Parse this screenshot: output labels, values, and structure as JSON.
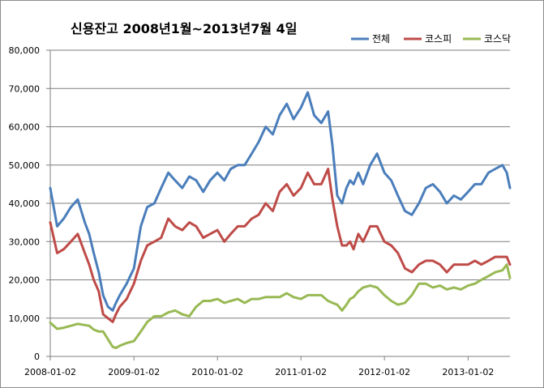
{
  "chart_data": {
    "type": "line",
    "title": "신용잔고 2008년1월~2013년7월 4일",
    "xlabel": "",
    "ylabel": "",
    "ylim": [
      0,
      80000
    ],
    "y_ticks": [
      0,
      10000,
      20000,
      30000,
      40000,
      50000,
      60000,
      70000,
      80000
    ],
    "y_tick_labels": [
      "0",
      "10,000",
      "20,000",
      "30,000",
      "40,000",
      "50,000",
      "60,000",
      "70,000",
      "80,000"
    ],
    "xlim": [
      "2008-01-02",
      "2013-07-04"
    ],
    "x_ticks": [
      "2008-01-02",
      "2009-01-02",
      "2010-01-02",
      "2011-01-02",
      "2012-01-02",
      "2013-01-02"
    ],
    "grid": "horizontal",
    "legend_position": "top-right",
    "series": [
      {
        "name": "전체",
        "color": "#4a7ebb",
        "x": [
          "2008-01-02",
          "2008-02-01",
          "2008-03-01",
          "2008-04-01",
          "2008-05-01",
          "2008-06-01",
          "2008-06-20",
          "2008-07-10",
          "2008-08-01",
          "2008-08-20",
          "2008-09-10",
          "2008-10-01",
          "2008-10-15",
          "2008-11-01",
          "2008-12-01",
          "2009-01-02",
          "2009-02-01",
          "2009-03-01",
          "2009-04-01",
          "2009-05-01",
          "2009-06-01",
          "2009-07-01",
          "2009-08-01",
          "2009-09-01",
          "2009-10-01",
          "2009-11-01",
          "2009-12-01",
          "2010-01-02",
          "2010-02-01",
          "2010-03-01",
          "2010-04-01",
          "2010-05-01",
          "2010-06-01",
          "2010-07-01",
          "2010-08-01",
          "2010-09-01",
          "2010-10-01",
          "2010-11-01",
          "2010-12-01",
          "2011-01-02",
          "2011-02-01",
          "2011-03-01",
          "2011-04-01",
          "2011-05-01",
          "2011-05-20",
          "2011-06-10",
          "2011-07-01",
          "2011-07-20",
          "2011-08-05",
          "2011-08-20",
          "2011-09-10",
          "2011-10-01",
          "2011-11-01",
          "2011-12-01",
          "2012-01-02",
          "2012-02-01",
          "2012-03-01",
          "2012-04-01",
          "2012-05-01",
          "2012-06-01",
          "2012-07-01",
          "2012-08-01",
          "2012-09-01",
          "2012-10-01",
          "2012-11-01",
          "2012-12-01",
          "2013-01-02",
          "2013-02-01",
          "2013-03-01",
          "2013-04-01",
          "2013-05-01",
          "2013-06-01",
          "2013-06-20",
          "2013-07-04"
        ],
        "values": [
          44000,
          34000,
          36000,
          39000,
          41000,
          35000,
          32000,
          27000,
          22000,
          16000,
          13000,
          12000,
          14000,
          16000,
          19000,
          23000,
          34000,
          39000,
          40000,
          44000,
          48000,
          46000,
          44000,
          47000,
          46000,
          43000,
          46000,
          48000,
          46000,
          49000,
          50000,
          50000,
          53000,
          56000,
          60000,
          58000,
          63000,
          66000,
          62000,
          65000,
          69000,
          63000,
          61000,
          64000,
          55000,
          42000,
          40000,
          44000,
          46000,
          45000,
          48000,
          45000,
          50000,
          53000,
          48000,
          46000,
          42000,
          38000,
          37000,
          40000,
          44000,
          45000,
          43000,
          40000,
          42000,
          41000,
          43000,
          45000,
          45000,
          48000,
          49000,
          50000,
          48000,
          44000
        ]
      },
      {
        "name": "코스피",
        "color": "#be4b48",
        "x": [
          "2008-01-02",
          "2008-02-01",
          "2008-03-01",
          "2008-04-01",
          "2008-05-01",
          "2008-06-01",
          "2008-06-20",
          "2008-07-10",
          "2008-08-01",
          "2008-08-20",
          "2008-09-10",
          "2008-10-01",
          "2008-10-15",
          "2008-11-01",
          "2008-12-01",
          "2009-01-02",
          "2009-02-01",
          "2009-03-01",
          "2009-04-01",
          "2009-05-01",
          "2009-06-01",
          "2009-07-01",
          "2009-08-01",
          "2009-09-01",
          "2009-10-01",
          "2009-11-01",
          "2009-12-01",
          "2010-01-02",
          "2010-02-01",
          "2010-03-01",
          "2010-04-01",
          "2010-05-01",
          "2010-06-01",
          "2010-07-01",
          "2010-08-01",
          "2010-09-01",
          "2010-10-01",
          "2010-11-01",
          "2010-12-01",
          "2011-01-02",
          "2011-02-01",
          "2011-03-01",
          "2011-04-01",
          "2011-05-01",
          "2011-05-20",
          "2011-06-10",
          "2011-07-01",
          "2011-07-20",
          "2011-08-05",
          "2011-08-20",
          "2011-09-10",
          "2011-10-01",
          "2011-11-01",
          "2011-12-01",
          "2012-01-02",
          "2012-02-01",
          "2012-03-01",
          "2012-04-01",
          "2012-05-01",
          "2012-06-01",
          "2012-07-01",
          "2012-08-01",
          "2012-09-01",
          "2012-10-01",
          "2012-11-01",
          "2012-12-01",
          "2013-01-02",
          "2013-02-01",
          "2013-03-01",
          "2013-04-01",
          "2013-05-01",
          "2013-06-01",
          "2013-06-20",
          "2013-07-04"
        ],
        "values": [
          35000,
          27000,
          28000,
          30000,
          32000,
          27000,
          24000,
          20000,
          17000,
          11000,
          10000,
          9000,
          11000,
          13000,
          15000,
          19000,
          25000,
          29000,
          30000,
          31000,
          36000,
          34000,
          33000,
          35000,
          34000,
          31000,
          32000,
          33000,
          30000,
          32000,
          34000,
          34000,
          36000,
          37000,
          40000,
          38000,
          43000,
          45000,
          42000,
          44000,
          48000,
          45000,
          45000,
          49000,
          41000,
          34000,
          29000,
          29000,
          30000,
          28000,
          32000,
          30000,
          34000,
          34000,
          30000,
          29000,
          27000,
          23000,
          22000,
          24000,
          25000,
          25000,
          24000,
          22000,
          24000,
          24000,
          24000,
          25000,
          24000,
          25000,
          26000,
          26000,
          26000,
          24000
        ]
      },
      {
        "name": "코스닥",
        "color": "#98b954",
        "x": [
          "2008-01-02",
          "2008-02-01",
          "2008-03-01",
          "2008-04-01",
          "2008-05-01",
          "2008-06-01",
          "2008-06-20",
          "2008-07-10",
          "2008-08-01",
          "2008-08-20",
          "2008-09-10",
          "2008-10-01",
          "2008-10-15",
          "2008-11-01",
          "2008-12-01",
          "2009-01-02",
          "2009-02-01",
          "2009-03-01",
          "2009-04-01",
          "2009-05-01",
          "2009-06-01",
          "2009-07-01",
          "2009-08-01",
          "2009-09-01",
          "2009-10-01",
          "2009-11-01",
          "2009-12-01",
          "2010-01-02",
          "2010-02-01",
          "2010-03-01",
          "2010-04-01",
          "2010-05-01",
          "2010-06-01",
          "2010-07-01",
          "2010-08-01",
          "2010-09-01",
          "2010-10-01",
          "2010-11-01",
          "2010-12-01",
          "2011-01-02",
          "2011-02-01",
          "2011-03-01",
          "2011-04-01",
          "2011-05-01",
          "2011-05-20",
          "2011-06-10",
          "2011-07-01",
          "2011-07-20",
          "2011-08-05",
          "2011-08-20",
          "2011-09-10",
          "2011-10-01",
          "2011-11-01",
          "2011-12-01",
          "2012-01-02",
          "2012-02-01",
          "2012-03-01",
          "2012-04-01",
          "2012-05-01",
          "2012-06-01",
          "2012-07-01",
          "2012-08-01",
          "2012-09-01",
          "2012-10-01",
          "2012-11-01",
          "2012-12-01",
          "2013-01-02",
          "2013-02-01",
          "2013-03-01",
          "2013-04-01",
          "2013-05-01",
          "2013-06-01",
          "2013-06-20",
          "2013-07-04"
        ],
        "values": [
          8800,
          7200,
          7500,
          8000,
          8500,
          8200,
          8000,
          7000,
          6500,
          6500,
          4500,
          2500,
          2200,
          2800,
          3500,
          4000,
          6500,
          9000,
          10500,
          10500,
          11500,
          12000,
          11000,
          10500,
          13000,
          14500,
          14500,
          15000,
          14000,
          14500,
          15000,
          14000,
          15000,
          15000,
          15500,
          15500,
          15500,
          16500,
          15500,
          15000,
          16000,
          16000,
          16000,
          14500,
          14000,
          13500,
          12000,
          13500,
          15000,
          15500,
          17000,
          18000,
          18500,
          18000,
          16000,
          14500,
          13500,
          14000,
          16000,
          19000,
          19000,
          18000,
          18500,
          17500,
          18000,
          17500,
          18500,
          19000,
          20000,
          21000,
          22000,
          22500,
          24000,
          20500
        ]
      }
    ]
  }
}
